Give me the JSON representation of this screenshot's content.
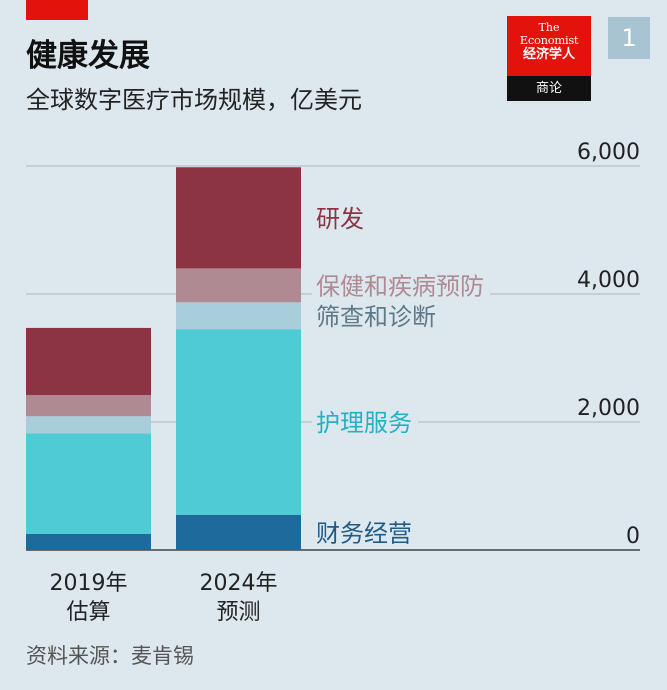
{
  "header": {
    "title": "健康发展",
    "subtitle": "全球数字医疗市场规模，亿美元"
  },
  "logo": {
    "line1": "The",
    "line2": "Economist",
    "line3": "经济学人",
    "bottom": "商论"
  },
  "badge": "1",
  "source": "资料来源：麦肯锡",
  "colors": {
    "background": "#dde8ee",
    "accent": "#e3120b"
  },
  "chart_data": {
    "type": "bar",
    "stacked": true,
    "categories": [
      {
        "line1": "2019年",
        "line2": "估算"
      },
      {
        "line1": "2024年",
        "line2": "预测"
      }
    ],
    "series": [
      {
        "name": "财务经营",
        "color": "#1f6a9c",
        "label_color": "#1f5a88",
        "values": [
          250,
          550
        ]
      },
      {
        "name": "护理服务",
        "color": "#4ecbd5",
        "label_color": "#22b2c4",
        "values": [
          1570,
          2900
        ]
      },
      {
        "name": "筛查和诊断",
        "color": "#a9cedb",
        "label_color": "#5e7a88",
        "values": [
          270,
          420
        ]
      },
      {
        "name": "保健和疾病预防",
        "color": "#b08a93",
        "label_color": "#b08a93",
        "values": [
          330,
          530
        ]
      },
      {
        "name": "研发",
        "color": "#8c3344",
        "label_color": "#8c3344",
        "values": [
          1050,
          1580
        ]
      }
    ],
    "yticks": [
      "6,000",
      "4,000",
      "2,000",
      "0"
    ],
    "ytick_values": [
      6000,
      4000,
      2000,
      0
    ],
    "ylim": [
      0,
      6000
    ],
    "grid": true
  }
}
